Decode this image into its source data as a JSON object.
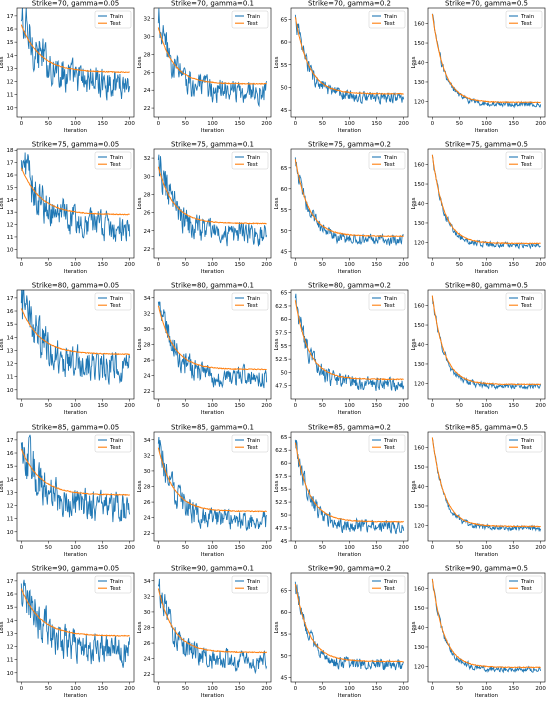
{
  "legend": {
    "train_label": "Train",
    "test_label": "Test"
  },
  "colors": {
    "train": "#1f77b4",
    "test": "#ff7f0e"
  },
  "chart_data": [
    {
      "type": "line",
      "title": "Strike=70, gamma=0.05",
      "xlabel": "Iteration",
      "ylabel": "Loss",
      "xlim": [
        -8,
        208
      ],
      "ylim": [
        9.3,
        17.6
      ],
      "xticks": [
        0,
        50,
        100,
        150,
        200
      ],
      "yticks": [
        10,
        11,
        12,
        13,
        14,
        15,
        16,
        17
      ],
      "train": {
        "start": 16.6,
        "end": 11.8,
        "noise": 2.2,
        "tau": 45
      },
      "test": {
        "start": 16.3,
        "end": 12.7,
        "tau": 35
      },
      "legend_position": "upper right",
      "grid": false
    },
    {
      "type": "line",
      "title": "Strike=70, gamma=0.1",
      "xlabel": "Iteration",
      "ylabel": "Loss",
      "xlim": [
        -8,
        208
      ],
      "ylim": [
        21.0,
        33.2
      ],
      "xticks": [
        0,
        50,
        100,
        150,
        200
      ],
      "yticks": [
        22,
        24,
        26,
        28,
        30,
        32
      ],
      "train": {
        "start": 31.5,
        "end": 23.8,
        "noise": 2.4,
        "tau": 30
      },
      "test": {
        "start": 31.0,
        "end": 24.7,
        "tau": 28
      },
      "legend_position": "upper right",
      "grid": false
    },
    {
      "type": "line",
      "title": "Strike=70, gamma=0.2",
      "xlabel": "Iteration",
      "ylabel": "Loss",
      "xlim": [
        -8,
        208
      ],
      "ylim": [
        43.5,
        67.5
      ],
      "xticks": [
        0,
        50,
        100,
        150,
        200
      ],
      "yticks": [
        45,
        50,
        55,
        60,
        65
      ],
      "train": {
        "start": 66.0,
        "end": 47.8,
        "noise": 2.4,
        "tau": 25
      },
      "test": {
        "start": 65.5,
        "end": 48.6,
        "tau": 25
      },
      "legend_position": "upper right",
      "grid": false
    },
    {
      "type": "line",
      "title": "Strike=70, gamma=0.5",
      "xlabel": "Iteration",
      "ylabel": "Loss",
      "xlim": [
        -8,
        208
      ],
      "ylim": [
        112,
        168
      ],
      "xticks": [
        0,
        50,
        100,
        150,
        200
      ],
      "yticks": [
        120,
        130,
        140,
        150,
        160
      ],
      "train": {
        "start": 165.0,
        "end": 118.5,
        "noise": 2.5,
        "tau": 22
      },
      "test": {
        "start": 165.0,
        "end": 119.5,
        "tau": 22
      },
      "legend_position": "upper right",
      "grid": false
    },
    {
      "type": "line",
      "title": "Strike=75, gamma=0.05",
      "xlabel": "Iteration",
      "ylabel": "Loss",
      "xlim": [
        -8,
        208
      ],
      "ylim": [
        9.3,
        18.1
      ],
      "xticks": [
        0,
        50,
        100,
        150,
        200
      ],
      "yticks": [
        10,
        11,
        12,
        13,
        14,
        15,
        16,
        17,
        18
      ],
      "train": {
        "start": 17.2,
        "end": 11.7,
        "noise": 2.2,
        "tau": 42
      },
      "test": {
        "start": 16.6,
        "end": 12.8,
        "tau": 35
      },
      "legend_position": "upper right",
      "grid": false
    },
    {
      "type": "line",
      "title": "Strike=75, gamma=0.1",
      "xlabel": "Iteration",
      "ylabel": "Loss",
      "xlim": [
        -8,
        208
      ],
      "ylim": [
        21.0,
        33.0
      ],
      "xticks": [
        0,
        50,
        100,
        150,
        200
      ],
      "yticks": [
        22,
        24,
        26,
        28,
        30,
        32
      ],
      "train": {
        "start": 31.8,
        "end": 23.6,
        "noise": 2.4,
        "tau": 30
      },
      "test": {
        "start": 31.0,
        "end": 24.8,
        "tau": 28
      },
      "legend_position": "upper right",
      "grid": false
    },
    {
      "type": "line",
      "title": "Strike=75, gamma=0.2",
      "xlabel": "Iteration",
      "ylabel": "Loss",
      "xlim": [
        -8,
        208
      ],
      "ylim": [
        43.5,
        69.5
      ],
      "xticks": [
        0,
        50,
        100,
        150,
        200
      ],
      "yticks": [
        45,
        50,
        55,
        60,
        65
      ],
      "train": {
        "start": 67.5,
        "end": 47.8,
        "noise": 2.4,
        "tau": 25
      },
      "test": {
        "start": 67.0,
        "end": 48.7,
        "tau": 25
      },
      "legend_position": "upper right",
      "grid": false
    },
    {
      "type": "line",
      "title": "Strike=75, gamma=0.5",
      "xlabel": "Iteration",
      "ylabel": "Loss",
      "xlim": [
        -8,
        208
      ],
      "ylim": [
        112,
        168
      ],
      "xticks": [
        0,
        50,
        100,
        150,
        200
      ],
      "yticks": [
        120,
        130,
        140,
        150,
        160
      ],
      "train": {
        "start": 165.0,
        "end": 118.5,
        "noise": 2.5,
        "tau": 22
      },
      "test": {
        "start": 165.0,
        "end": 119.5,
        "tau": 22
      },
      "legend_position": "upper right",
      "grid": false
    },
    {
      "type": "line",
      "title": "Strike=80, gamma=0.05",
      "xlabel": "Iteration",
      "ylabel": "Loss",
      "xlim": [
        -8,
        208
      ],
      "ylim": [
        9.3,
        17.6
      ],
      "xticks": [
        0,
        50,
        100,
        150,
        200
      ],
      "yticks": [
        10,
        11,
        12,
        13,
        14,
        15,
        16,
        17
      ],
      "train": {
        "start": 16.6,
        "end": 11.6,
        "noise": 2.2,
        "tau": 45
      },
      "test": {
        "start": 16.2,
        "end": 12.7,
        "tau": 35
      },
      "legend_position": "upper right",
      "grid": false
    },
    {
      "type": "line",
      "title": "Strike=80, gamma=0.1",
      "xlabel": "Iteration",
      "ylabel": "Loss",
      "xlim": [
        -8,
        208
      ],
      "ylim": [
        21.0,
        35.0
      ],
      "xticks": [
        0,
        50,
        100,
        150,
        200
      ],
      "yticks": [
        22,
        24,
        26,
        28,
        30,
        32,
        34
      ],
      "train": {
        "start": 33.5,
        "end": 23.8,
        "noise": 2.4,
        "tau": 30
      },
      "test": {
        "start": 33.0,
        "end": 24.8,
        "tau": 28
      },
      "legend_position": "upper right",
      "grid": false
    },
    {
      "type": "line",
      "title": "Strike=80, gamma=0.2",
      "xlabel": "Iteration",
      "ylabel": "Loss",
      "xlim": [
        -8,
        208
      ],
      "ylim": [
        45.0,
        65.5
      ],
      "xticks": [
        0,
        50,
        100,
        150,
        200
      ],
      "yticks": [
        47.5,
        50.0,
        52.5,
        55.0,
        57.5,
        60.0,
        62.5,
        65.0
      ],
      "train": {
        "start": 64.0,
        "end": 47.8,
        "noise": 2.4,
        "tau": 25
      },
      "test": {
        "start": 63.5,
        "end": 48.7,
        "tau": 25
      },
      "legend_position": "upper right",
      "grid": false
    },
    {
      "type": "line",
      "title": "Strike=80, gamma=0.5",
      "xlabel": "Iteration",
      "ylabel": "Loss",
      "xlim": [
        -8,
        208
      ],
      "ylim": [
        112,
        168
      ],
      "xticks": [
        0,
        50,
        100,
        150,
        200
      ],
      "yticks": [
        120,
        130,
        140,
        150,
        160
      ],
      "train": {
        "start": 165.0,
        "end": 118.5,
        "noise": 2.5,
        "tau": 22
      },
      "test": {
        "start": 165.0,
        "end": 119.5,
        "tau": 22
      },
      "legend_position": "upper right",
      "grid": false
    },
    {
      "type": "line",
      "title": "Strike=85, gamma=0.05",
      "xlabel": "Iteration",
      "ylabel": "Loss",
      "xlim": [
        -8,
        208
      ],
      "ylim": [
        9.3,
        17.6
      ],
      "xticks": [
        0,
        50,
        100,
        150,
        200
      ],
      "yticks": [
        10,
        11,
        12,
        13,
        14,
        15,
        16,
        17
      ],
      "train": {
        "start": 16.8,
        "end": 11.7,
        "noise": 2.2,
        "tau": 42
      },
      "test": {
        "start": 16.3,
        "end": 12.8,
        "tau": 35
      },
      "legend_position": "upper right",
      "grid": false
    },
    {
      "type": "line",
      "title": "Strike=85, gamma=0.1",
      "xlabel": "Iteration",
      "ylabel": "Loss",
      "xlim": [
        -8,
        208
      ],
      "ylim": [
        21.0,
        35.0
      ],
      "xticks": [
        0,
        50,
        100,
        150,
        200
      ],
      "yticks": [
        22,
        24,
        26,
        28,
        30,
        32,
        34
      ],
      "train": {
        "start": 33.5,
        "end": 23.6,
        "noise": 2.4,
        "tau": 30
      },
      "test": {
        "start": 33.0,
        "end": 24.8,
        "tau": 28
      },
      "legend_position": "upper right",
      "grid": false
    },
    {
      "type": "line",
      "title": "Strike=85, gamma=0.2",
      "xlabel": "Iteration",
      "ylabel": "Loss",
      "xlim": [
        -8,
        208
      ],
      "ylim": [
        45.0,
        66.0
      ],
      "xticks": [
        0,
        50,
        100,
        150,
        200
      ],
      "yticks": [
        45.0,
        47.5,
        50.0,
        52.5,
        55.0,
        57.5,
        60.0,
        62.5,
        65.0
      ],
      "train": {
        "start": 64.5,
        "end": 47.8,
        "noise": 2.4,
        "tau": 25
      },
      "test": {
        "start": 64.0,
        "end": 48.7,
        "tau": 25
      },
      "legend_position": "upper right",
      "grid": false
    },
    {
      "type": "line",
      "title": "Strike=85, gamma=0.5",
      "xlabel": "Iteration",
      "ylabel": "Loss",
      "xlim": [
        -8,
        208
      ],
      "ylim": [
        112,
        168
      ],
      "xticks": [
        0,
        50,
        100,
        150,
        200
      ],
      "yticks": [
        120,
        130,
        140,
        150,
        160
      ],
      "train": {
        "start": 165.0,
        "end": 118.5,
        "noise": 2.5,
        "tau": 22
      },
      "test": {
        "start": 165.0,
        "end": 119.5,
        "tau": 22
      },
      "legend_position": "upper right",
      "grid": false
    },
    {
      "type": "line",
      "title": "Strike=90, gamma=0.05",
      "xlabel": "Iteration",
      "ylabel": "Loss",
      "xlim": [
        -8,
        208
      ],
      "ylim": [
        9.3,
        17.6
      ],
      "xticks": [
        0,
        50,
        100,
        150,
        200
      ],
      "yticks": [
        10,
        11,
        12,
        13,
        14,
        15,
        16,
        17
      ],
      "train": {
        "start": 16.8,
        "end": 11.6,
        "noise": 2.2,
        "tau": 42
      },
      "test": {
        "start": 16.4,
        "end": 12.8,
        "tau": 35
      },
      "legend_position": "upper right",
      "grid": false
    },
    {
      "type": "line",
      "title": "Strike=90, gamma=0.1",
      "xlabel": "Iteration",
      "ylabel": "Loss",
      "xlim": [
        -8,
        208
      ],
      "ylim": [
        21.0,
        35.0
      ],
      "xticks": [
        0,
        50,
        100,
        150,
        200
      ],
      "yticks": [
        22,
        24,
        26,
        28,
        30,
        32,
        34
      ],
      "train": {
        "start": 33.5,
        "end": 23.6,
        "noise": 2.4,
        "tau": 30
      },
      "test": {
        "start": 33.0,
        "end": 24.8,
        "tau": 28
      },
      "legend_position": "upper right",
      "grid": false
    },
    {
      "type": "line",
      "title": "Strike=90, gamma=0.2",
      "xlabel": "Iteration",
      "ylabel": "Loss",
      "xlim": [
        -8,
        208
      ],
      "ylim": [
        44.0,
        69.0
      ],
      "xticks": [
        0,
        50,
        100,
        150,
        200
      ],
      "yticks": [
        45,
        50,
        55,
        60,
        65
      ],
      "train": {
        "start": 67.0,
        "end": 47.8,
        "noise": 2.4,
        "tau": 25
      },
      "test": {
        "start": 66.5,
        "end": 48.7,
        "tau": 25
      },
      "legend_position": "upper right",
      "grid": false
    },
    {
      "type": "line",
      "title": "Strike=90, gamma=0.5",
      "xlabel": "Iteration",
      "ylabel": "Loss",
      "xlim": [
        -8,
        208
      ],
      "ylim": [
        112,
        168
      ],
      "xticks": [
        0,
        50,
        100,
        150,
        200
      ],
      "yticks": [
        120,
        130,
        140,
        150,
        160
      ],
      "train": {
        "start": 165.0,
        "end": 118.5,
        "noise": 2.5,
        "tau": 22
      },
      "test": {
        "start": 165.0,
        "end": 119.5,
        "tau": 22
      },
      "legend_position": "upper right",
      "grid": false
    }
  ]
}
